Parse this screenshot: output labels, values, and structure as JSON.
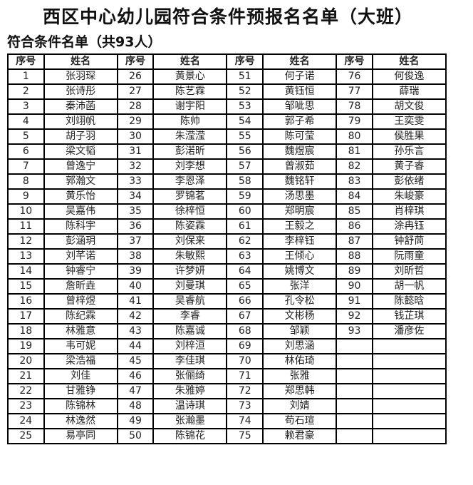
{
  "title": "西区中心幼儿园符合条件预报名名单（大班）",
  "subtitle": "符合条件名单（共93人）",
  "table": {
    "headers": [
      "序号",
      "姓名",
      "序号",
      "姓名",
      "序号",
      "姓名",
      "序号",
      "姓名"
    ],
    "names": [
      "张羽琛",
      "张诗彤",
      "秦沛菡",
      "刘翊帆",
      "胡子羽",
      "梁文韬",
      "曾逸宁",
      "郭瀚文",
      "黄乐怡",
      "吴嘉伟",
      "陈科宇",
      "彭涵玥",
      "刘芊诺",
      "钟睿宁",
      "詹昕垚",
      "曾梓煜",
      "陈纪霖",
      "林雅意",
      "韦可妮",
      "梁浩福",
      "刘佳",
      "甘雅铮",
      "陈锦林",
      "林逸然",
      "易亭同",
      "黄景心",
      "陈艺霖",
      "谢宇阳",
      "陈帅",
      "朱滢滢",
      "彭渃昕",
      "刘李想",
      "李恩泽",
      "罗锦茗",
      "徐梓恒",
      "陈姿霖",
      "刘保来",
      "朱敏熙",
      "许梦妍",
      "刘曼琪",
      "吴睿航",
      "李睿",
      "陈嘉诚",
      "刘梓洹",
      "李佳琪",
      "张俪绮",
      "朱雅婷",
      "温诗琪",
      "张瀚墨",
      "陈锦花",
      "何子诺",
      "黄钰恒",
      "邹呲思",
      "郭子希",
      "陈可莹",
      "魏煜宸",
      "曾淑茹",
      "魏铭轩",
      "汤思墨",
      "郑明宸",
      "王毅之",
      "李梓钰",
      "王倾心",
      "姚博文",
      "张洋",
      "孔令松",
      "文彬杨",
      "邹颖",
      "刘思涵",
      "林佑琦",
      "张雅",
      "郑思韩",
      "刘婧",
      "苟石瑄",
      "赖君豪",
      "何俊逸",
      "薛瑞",
      "胡文俊",
      "王奕雯",
      "侯胜果",
      "孙乐言",
      "黄子睿",
      "彭依绪",
      "朱峻豪",
      "肖梓琪",
      "涂冉钰",
      "钟舒茼",
      "阮雨童",
      "刘昕哲",
      "胡一帆",
      "陈懿晗",
      "钱芷琪",
      "潘彦佐"
    ]
  }
}
